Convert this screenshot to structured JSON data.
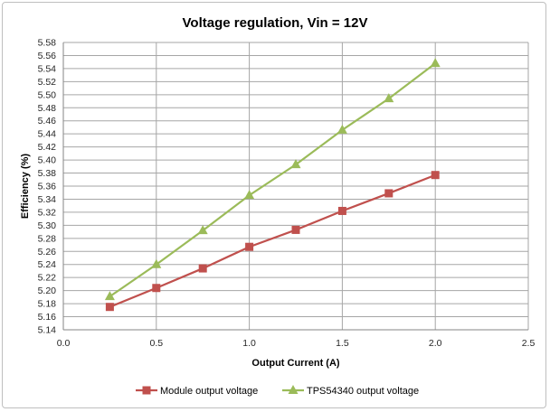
{
  "chart_data": {
    "type": "line",
    "title": "Voltage regulation, Vin = 12V",
    "xlabel": "Output Current (A)",
    "ylabel": "Efficiency (%)",
    "xlim": [
      0,
      2.5
    ],
    "ylim": [
      5.14,
      5.58
    ],
    "x_ticks": [
      "0.0",
      "0.5",
      "1.0",
      "1.5",
      "2.0",
      "2.5"
    ],
    "y_ticks": [
      "5.14",
      "5.16",
      "5.18",
      "5.20",
      "5.22",
      "5.24",
      "5.26",
      "5.28",
      "5.30",
      "5.32",
      "5.34",
      "5.36",
      "5.38",
      "5.40",
      "5.42",
      "5.44",
      "5.46",
      "5.48",
      "5.50",
      "5.52",
      "5.54",
      "5.56",
      "5.58"
    ],
    "grid": "on",
    "legend_position": "bottom",
    "series": [
      {
        "name": "Module output voltage",
        "color": "#c0504d",
        "marker": "square",
        "x": [
          0.25,
          0.5,
          0.75,
          1.0,
          1.25,
          1.5,
          1.75,
          2.0
        ],
        "y": [
          5.175,
          5.204,
          5.234,
          5.267,
          5.293,
          5.322,
          5.349,
          5.377
        ]
      },
      {
        "name": "TPS54340 output voltage",
        "color": "#9bbb59",
        "marker": "triangle",
        "x": [
          0.25,
          0.5,
          0.75,
          1.0,
          1.25,
          1.5,
          1.75,
          2.0
        ],
        "y": [
          5.191,
          5.24,
          5.292,
          5.346,
          5.393,
          5.446,
          5.494,
          5.548
        ]
      }
    ]
  }
}
